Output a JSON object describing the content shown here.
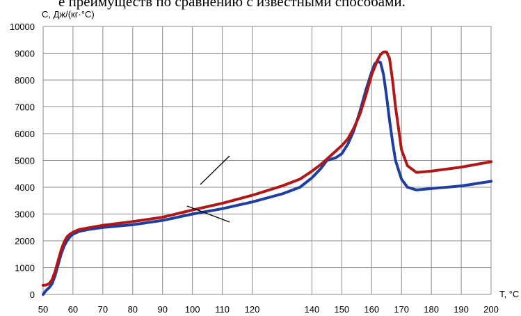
{
  "page": {
    "top_text": "е преимуществ по сравнению с известными способами."
  },
  "chart_data": {
    "type": "line",
    "title": "",
    "xlabel": "Т, °С",
    "ylabel": "С, Дж/(кг·°С)",
    "xlim": [
      50,
      200
    ],
    "ylim": [
      0,
      10000
    ],
    "xticks": [
      50,
      60,
      70,
      80,
      90,
      100,
      110,
      120,
      140,
      150,
      160,
      170,
      180,
      190,
      200
    ],
    "yticks": [
      0,
      1000,
      2000,
      3000,
      4000,
      5000,
      6000,
      7000,
      8000,
      9000,
      10000
    ],
    "grid": true,
    "legend": "none",
    "series": [
      {
        "color": "#1f3fa0",
        "x": [
          50,
          51,
          52,
          53,
          54,
          55,
          56,
          57,
          58,
          59,
          60,
          62,
          65,
          70,
          80,
          90,
          100,
          110,
          120,
          130,
          136,
          140,
          143,
          145,
          148,
          150,
          152,
          154,
          156,
          158,
          160,
          161,
          162,
          163,
          164,
          165,
          166,
          167,
          168,
          170,
          172,
          175,
          180,
          190,
          200
        ],
        "y": [
          0,
          150,
          250,
          400,
          700,
          1100,
          1500,
          1800,
          2000,
          2150,
          2250,
          2350,
          2420,
          2500,
          2600,
          2760,
          3000,
          3200,
          3450,
          3750,
          4000,
          4350,
          4700,
          5000,
          5100,
          5250,
          5600,
          6100,
          6800,
          7600,
          8300,
          8600,
          8700,
          8650,
          8200,
          7400,
          6500,
          5700,
          5000,
          4300,
          4000,
          3900,
          3950,
          4050,
          4220
        ]
      },
      {
        "color": "#b01818",
        "x": [
          50,
          51,
          52,
          53,
          54,
          55,
          56,
          57,
          58,
          59,
          60,
          62,
          65,
          70,
          80,
          90,
          100,
          110,
          120,
          130,
          136,
          140,
          143,
          145,
          148,
          150,
          152,
          154,
          156,
          158,
          160,
          162,
          163,
          164,
          165,
          166,
          167,
          168,
          170,
          172,
          175,
          180,
          190,
          200
        ],
        "y": [
          340,
          350,
          400,
          550,
          850,
          1250,
          1650,
          1950,
          2150,
          2250,
          2320,
          2420,
          2480,
          2580,
          2720,
          2880,
          3150,
          3400,
          3700,
          4050,
          4300,
          4600,
          4850,
          5050,
          5350,
          5550,
          5800,
          6200,
          6700,
          7400,
          8200,
          8750,
          8950,
          9050,
          9050,
          8800,
          8000,
          7000,
          5400,
          4800,
          4550,
          4600,
          4750,
          4950
        ]
      }
    ],
    "annotations": []
  }
}
